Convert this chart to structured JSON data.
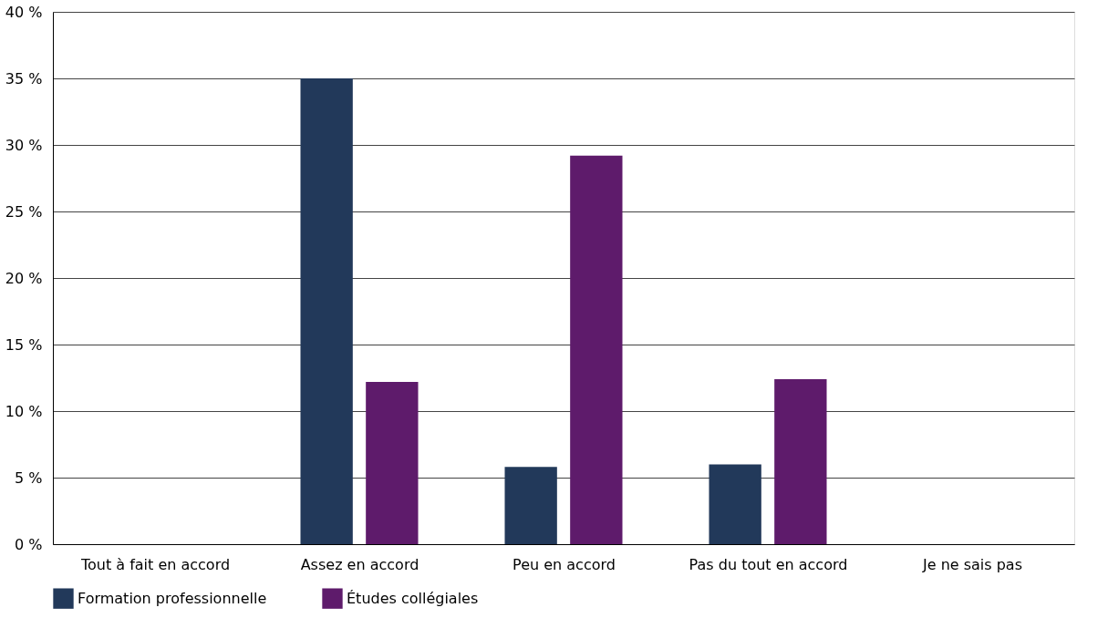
{
  "chart_data": {
    "type": "bar",
    "categories": [
      "Tout à fait en accord",
      "Assez en accord",
      "Peu en accord",
      "Pas du tout en accord",
      "Je ne sais pas"
    ],
    "series": [
      {
        "name": "Formation professionnelle",
        "color": "#22395a",
        "values": [
          0,
          35,
          5.8,
          6.0,
          0
        ]
      },
      {
        "name": "Études collégiales",
        "color": "#5e1b6b",
        "values": [
          0,
          12.2,
          29.2,
          12.4,
          0
        ]
      }
    ],
    "ylim": [
      0,
      40
    ],
    "yticks": [
      {
        "value": 0,
        "label": "0 %"
      },
      {
        "value": 5,
        "label": "5 %"
      },
      {
        "value": 10,
        "label": "10 %"
      },
      {
        "value": 15,
        "label": "15 %"
      },
      {
        "value": 20,
        "label": "20 %"
      },
      {
        "value": 25,
        "label": "25 %"
      },
      {
        "value": 30,
        "label": "30 %"
      },
      {
        "value": 35,
        "label": "35 %"
      },
      {
        "value": 40,
        "label": "40 %"
      }
    ],
    "grid": "y",
    "legend": "bottom"
  }
}
